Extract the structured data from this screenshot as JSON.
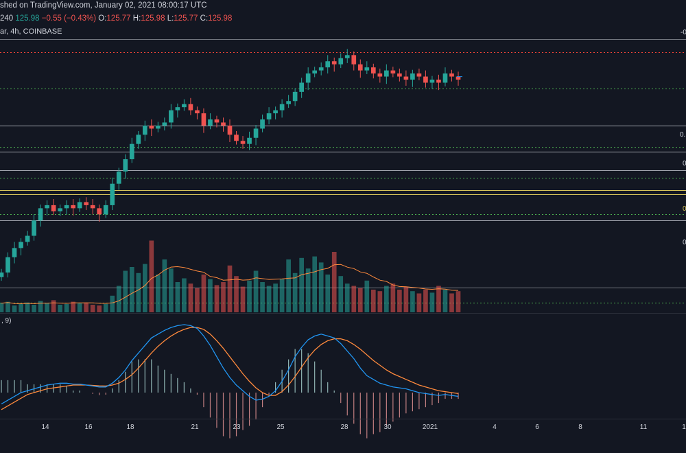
{
  "header": {
    "line1": "shed on TradingView.com, January 02, 2021 08:00:17 UTC",
    "interval": "240",
    "price": "125.98",
    "change": "−0.55 (−0.43%)",
    "o_label": "O:",
    "o_value": "125.77",
    "h_label": "H:",
    "h_value": "125.98",
    "l_label": "L:",
    "l_value": "125.77",
    "c_label": "C:",
    "c_value": "125.98",
    "symbol_line": "ar, 4h, COINBASE",
    "macd_label": ", 9)"
  },
  "right_labels": [
    "-0",
    "0.",
    "0",
    "0",
    "0"
  ],
  "colors": {
    "background": "#131722",
    "up": "#26a69a",
    "down": "#ef5350",
    "macd": "#2196f3",
    "signal": "#ff8a3d",
    "volume_ma": "#ff8a3d",
    "fib": "#b2b5be",
    "green_dotted": "#4caf50",
    "red_dotted": "#f44336",
    "yellow": "#d7c45a"
  },
  "chart_data": [
    {
      "type": "candlestick",
      "title": "",
      "timeframe": "4h",
      "exchange": "COINBASE",
      "x_tick_labels": [
        "14",
        "16",
        "18",
        "21",
        "23",
        "25",
        "28",
        "30",
        "2021",
        "4",
        "6",
        "8",
        "11",
        "1"
      ],
      "ylim": [
        60,
        138
      ],
      "price_path": [
        62,
        67,
        70,
        72,
        74,
        79,
        83,
        84,
        82,
        83,
        84,
        83,
        85,
        84,
        83,
        81,
        84,
        91,
        95,
        99,
        104,
        107,
        110,
        109,
        110,
        111,
        115,
        116,
        117,
        115,
        114,
        110,
        112,
        111,
        110,
        107,
        105,
        104,
        106,
        109,
        112,
        114,
        115,
        117,
        118,
        121,
        124,
        127,
        128,
        129,
        131,
        130,
        132,
        133,
        130,
        128,
        129,
        127,
        126,
        128,
        127,
        126,
        125,
        127,
        126,
        124,
        125,
        124,
        127,
        126,
        125
      ],
      "current_price": 125.98,
      "horizontal_levels": [
        {
          "style": "red-dotted",
          "price": 134
        },
        {
          "style": "green-dotted",
          "price": 122
        },
        {
          "style": "fib",
          "price": 110
        },
        {
          "style": "green-dotted",
          "price": 103
        },
        {
          "style": "fib",
          "price": 101.5
        },
        {
          "style": "fib",
          "price": 95.5
        },
        {
          "style": "green-dotted",
          "price": 93
        },
        {
          "style": "yellow",
          "price": 89
        },
        {
          "style": "yellow",
          "price": 87.5
        },
        {
          "style": "green-dotted",
          "price": 81
        },
        {
          "style": "fib",
          "price": 79
        }
      ]
    },
    {
      "type": "bar",
      "title": "",
      "volume_units_relative": true,
      "series": [
        {
          "values": [
            0.12,
            0.14,
            0.09,
            0.11,
            0.13,
            0.1,
            0.15,
            0.12,
            0.16,
            0.1,
            0.11,
            0.14,
            0.12,
            0.13,
            0.1,
            0.09,
            0.11,
            0.22,
            0.35,
            0.55,
            0.6,
            0.52,
            0.64,
            0.95,
            0.5,
            0.7,
            0.58,
            0.4,
            0.45,
            0.38,
            0.32,
            0.5,
            0.44,
            0.36,
            0.4,
            0.62,
            0.48,
            0.34,
            0.42,
            0.55,
            0.4,
            0.35,
            0.38,
            0.44,
            0.7,
            0.52,
            0.72,
            0.58,
            0.74,
            0.66,
            0.5,
            0.8,
            0.48,
            0.38,
            0.35,
            0.32,
            0.42,
            0.3,
            0.28,
            0.35,
            0.38,
            0.3,
            0.34,
            0.28,
            0.25,
            0.3,
            0.26,
            0.35,
            0.3,
            0.25,
            0.28
          ]
        },
        {
          "name": "",
          "values": []
        }
      ]
    },
    {
      "type": "line",
      "title": "",
      "series": [
        {
          "id": "macd",
          "values": [
            -0.6,
            -0.4,
            -0.2,
            0.0,
            0.1,
            0.2,
            0.3,
            0.4,
            0.45,
            0.5,
            0.5,
            0.45,
            0.45,
            0.4,
            0.35,
            0.3,
            0.3,
            0.5,
            0.8,
            1.2,
            1.7,
            2.1,
            2.5,
            2.9,
            3.1,
            3.3,
            3.45,
            3.55,
            3.6,
            3.55,
            3.4,
            3.0,
            2.5,
            1.9,
            1.3,
            0.8,
            0.4,
            0.1,
            -0.2,
            -0.4,
            -0.35,
            -0.2,
            0.1,
            0.6,
            1.2,
            1.9,
            2.4,
            2.8,
            3.0,
            3.1,
            3.0,
            2.9,
            2.6,
            2.2,
            1.8,
            1.3,
            0.9,
            0.7,
            0.5,
            0.4,
            0.3,
            0.25,
            0.2,
            0.1,
            0.0,
            -0.05,
            -0.1,
            -0.15,
            -0.1,
            -0.15,
            -0.2
          ]
        },
        {
          "id": "signal",
          "values": [
            -0.9,
            -0.7,
            -0.5,
            -0.3,
            -0.1,
            0.0,
            0.1,
            0.2,
            0.25,
            0.3,
            0.35,
            0.4,
            0.4,
            0.4,
            0.38,
            0.36,
            0.35,
            0.4,
            0.5,
            0.7,
            0.95,
            1.3,
            1.7,
            2.1,
            2.45,
            2.75,
            3.0,
            3.2,
            3.35,
            3.45,
            3.45,
            3.35,
            3.1,
            2.75,
            2.35,
            1.9,
            1.45,
            1.0,
            0.6,
            0.25,
            0.0,
            -0.15,
            -0.15,
            0.05,
            0.4,
            0.85,
            1.35,
            1.85,
            2.25,
            2.55,
            2.75,
            2.85,
            2.85,
            2.75,
            2.55,
            2.3,
            2.0,
            1.7,
            1.45,
            1.2,
            1.0,
            0.85,
            0.7,
            0.55,
            0.4,
            0.3,
            0.2,
            0.1,
            0.05,
            0.0,
            -0.05
          ]
        }
      ]
    }
  ]
}
